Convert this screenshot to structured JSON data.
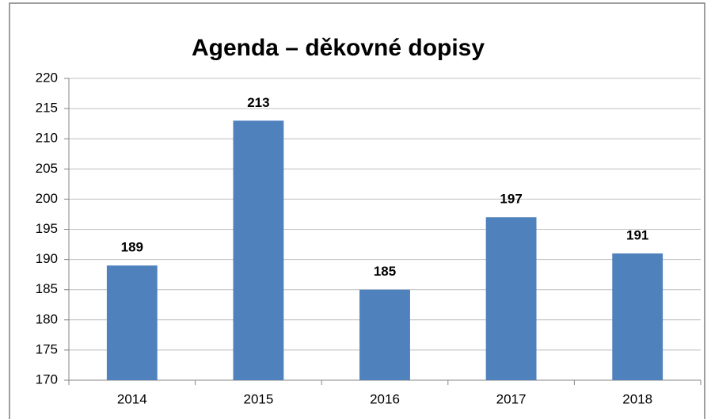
{
  "chart_data": {
    "type": "bar",
    "title": "Agenda – děkovné dopisy",
    "categories": [
      "2014",
      "2015",
      "2016",
      "2017",
      "2018"
    ],
    "values": [
      189,
      213,
      185,
      197,
      191
    ],
    "color": "#4f81bd",
    "ylim": [
      170,
      220
    ],
    "yticks": [
      170,
      175,
      180,
      185,
      190,
      195,
      200,
      205,
      210,
      215,
      220
    ],
    "grid": true
  }
}
